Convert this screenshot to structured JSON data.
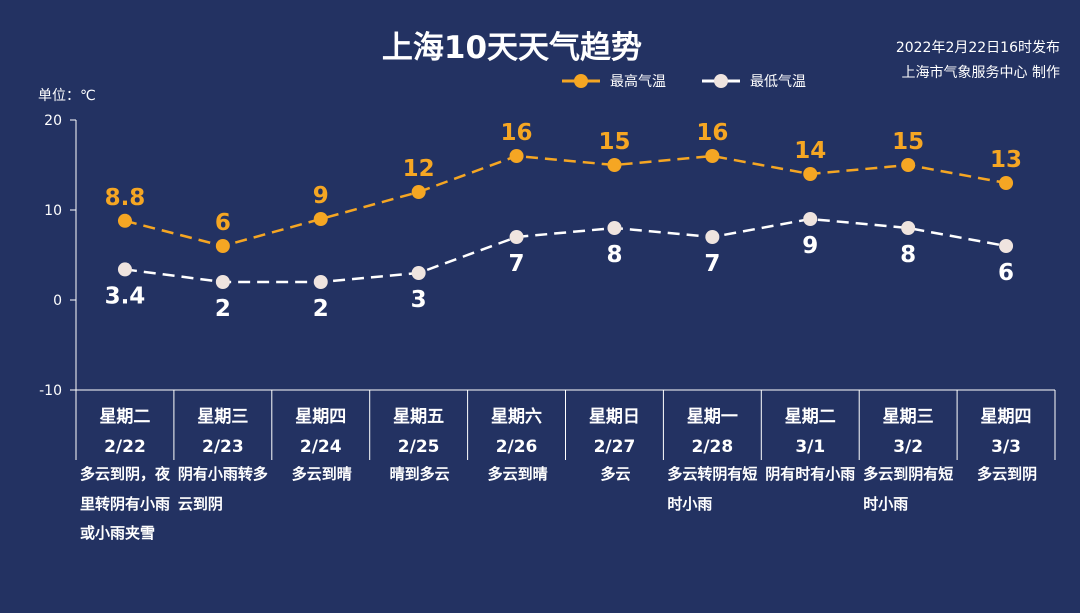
{
  "header": {
    "title": "上海10天天气趋势",
    "publish_date": "2022年2月22日16时发布",
    "publisher": "上海市气象服务中心 制作"
  },
  "unit_label": "单位：℃",
  "colors": {
    "background": "#233262",
    "high": "#f5a623",
    "low": "#ffffff",
    "low_marker": "#efe4df"
  },
  "chart_data": {
    "type": "line",
    "x_labels": [
      {
        "weekday": "星期二",
        "date": "2/22"
      },
      {
        "weekday": "星期三",
        "date": "2/23"
      },
      {
        "weekday": "星期四",
        "date": "2/24"
      },
      {
        "weekday": "星期五",
        "date": "2/25"
      },
      {
        "weekday": "星期六",
        "date": "2/26"
      },
      {
        "weekday": "星期日",
        "date": "2/27"
      },
      {
        "weekday": "星期一",
        "date": "2/28"
      },
      {
        "weekday": "星期二",
        "date": "3/1"
      },
      {
        "weekday": "星期三",
        "date": "3/2"
      },
      {
        "weekday": "星期四",
        "date": "3/3"
      }
    ],
    "series": [
      {
        "name": "最高气温",
        "values": [
          8.8,
          6,
          9,
          12,
          16,
          15,
          16,
          14,
          15,
          13
        ]
      },
      {
        "name": "最低气温",
        "values": [
          3.4,
          2,
          2,
          3,
          7,
          8,
          7,
          9,
          8,
          6
        ]
      }
    ],
    "y_ticks": [
      20,
      10,
      0,
      -10
    ],
    "ylim": [
      -10,
      20
    ],
    "legend_position": "top-right",
    "line_style": "dashed",
    "grid": false
  },
  "weather": [
    "多云到阴，夜里转阴有小雨或小雨夹雪",
    "阴有小雨转多云到阴",
    "多云到晴",
    "晴到多云",
    "多云到晴",
    "多云",
    "多云转阴有短时小雨",
    "阴有时有小雨",
    "多云到阴有短时小雨",
    "多云到阴"
  ]
}
